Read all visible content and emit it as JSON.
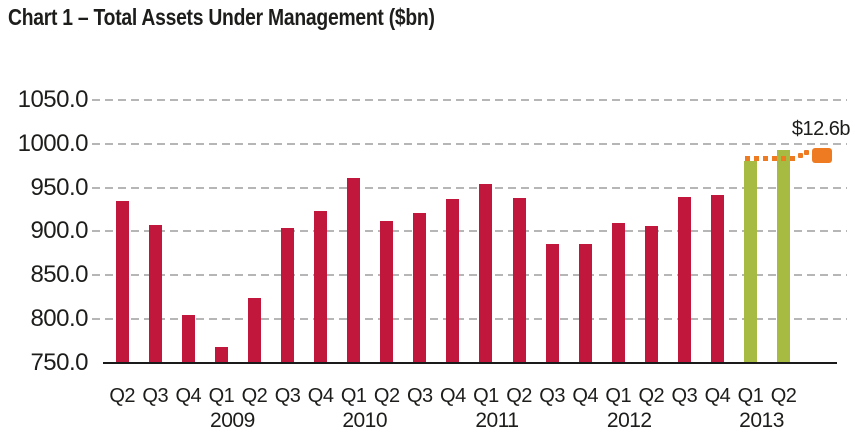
{
  "chart_data": {
    "type": "bar",
    "title": "Chart 1 – Total Assets Under Management ($bn)",
    "unit": "$bn",
    "categories": [
      "Q2",
      "Q3",
      "Q4",
      "Q1",
      "Q2",
      "Q3",
      "Q4",
      "Q1",
      "Q2",
      "Q3",
      "Q4",
      "Q1",
      "Q2",
      "Q3",
      "Q4",
      "Q1",
      "Q2",
      "Q3",
      "Q4",
      "Q1",
      "Q2"
    ],
    "values": [
      935,
      907,
      804,
      768,
      824,
      904,
      923,
      961,
      912,
      921,
      937,
      954,
      938,
      886,
      886,
      910,
      906,
      939,
      942,
      979.8,
      992.4
    ],
    "highlight_start_index": 19,
    "years": [
      {
        "label": "2009",
        "first_quarter_index": 3
      },
      {
        "label": "2010",
        "first_quarter_index": 7
      },
      {
        "label": "2011",
        "first_quarter_index": 11
      },
      {
        "label": "2012",
        "first_quarter_index": 15
      },
      {
        "label": "2013",
        "first_quarter_index": 19
      }
    ],
    "y_axis": {
      "min": 750,
      "max": 1050,
      "step": 50,
      "tick_labels": [
        "750.0",
        "800.0",
        "850.0",
        "900.0",
        "950.0",
        "1000.0",
        "1050.0"
      ]
    },
    "grid": {
      "horizontal": true,
      "style": "dashed",
      "color": "#b6b6b6"
    },
    "legend": null,
    "annotation": {
      "label": "$12.6b",
      "style": "dotted-line-to-square-marker",
      "from_value": 979.8,
      "to_value": 992.4
    },
    "colors": {
      "bar": "#c2173d",
      "highlight_bar": "#a7ba41",
      "annotation": "#ee7b22",
      "axis_line": "#1a1a1a",
      "text": "#1d1d1b",
      "gridline": "#b6b6b6"
    }
  }
}
